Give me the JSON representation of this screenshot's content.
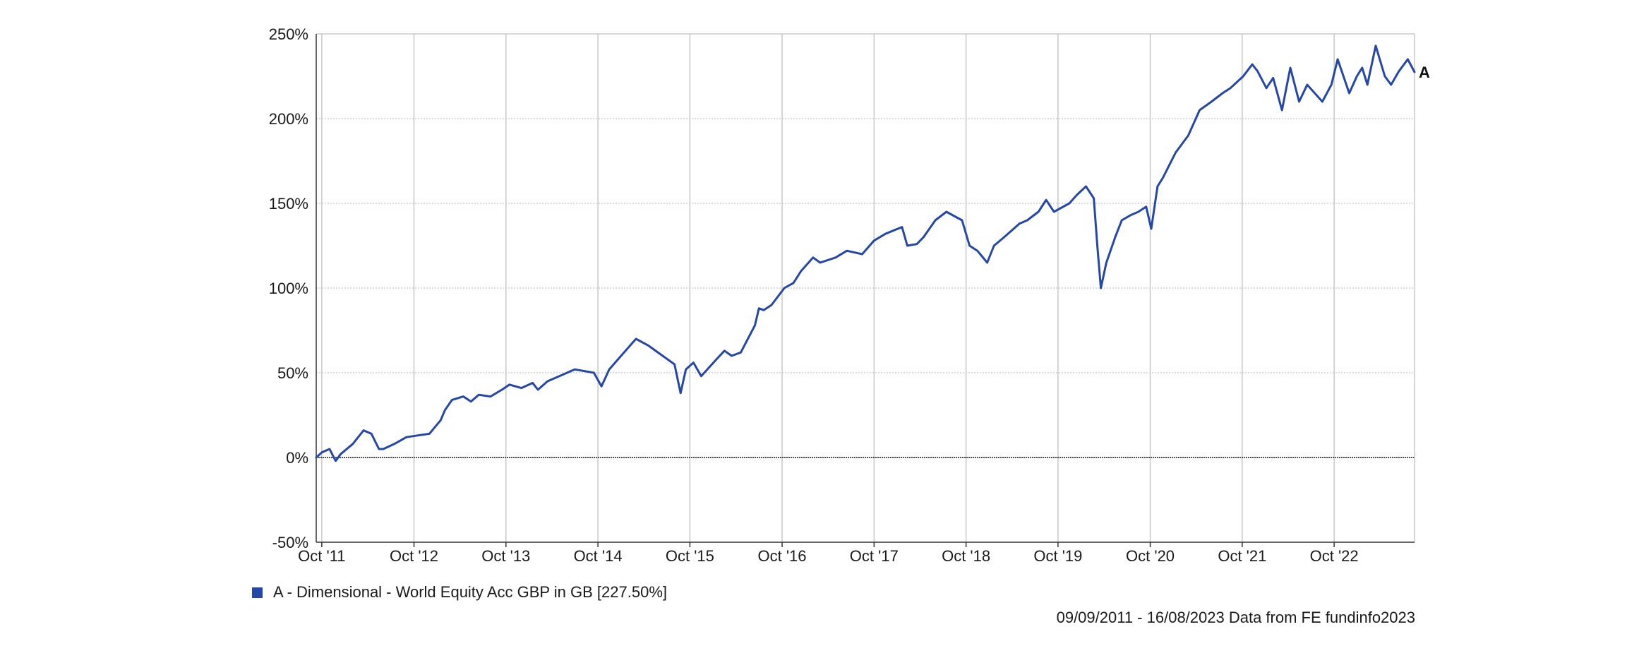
{
  "chart_data": {
    "type": "line",
    "title": "",
    "xlabel": "",
    "ylabel": "",
    "ylim": [
      -50,
      250
    ],
    "yticks": [
      -50,
      0,
      50,
      100,
      150,
      200,
      250
    ],
    "ytick_labels": [
      "-50%",
      "0%",
      "50%",
      "100%",
      "150%",
      "200%",
      "250%"
    ],
    "xlim": [
      "2011-09-09",
      "2023-08-16"
    ],
    "xticks": [
      "2011-10-01",
      "2012-10-01",
      "2013-10-01",
      "2014-10-01",
      "2015-10-01",
      "2016-10-01",
      "2017-10-01",
      "2018-10-01",
      "2019-10-01",
      "2020-10-01",
      "2021-10-01",
      "2022-10-01"
    ],
    "xtick_labels": [
      "Oct '11",
      "Oct '12",
      "Oct '13",
      "Oct '14",
      "Oct '15",
      "Oct '16",
      "Oct '17",
      "Oct '18",
      "Oct '19",
      "Oct '20",
      "Oct '21",
      "Oct '22"
    ],
    "grid": true,
    "zero_line": true,
    "series": [
      {
        "name": "A - Dimensional - World Equity Acc GBP in GB [227.50%]",
        "end_label": "A",
        "color": "#2447a8",
        "x": [
          "2011-09-09",
          "2011-10-01",
          "2011-11-01",
          "2011-11-25",
          "2011-12-15",
          "2012-02-01",
          "2012-03-15",
          "2012-04-15",
          "2012-05-15",
          "2012-06-01",
          "2012-07-15",
          "2012-09-01",
          "2012-10-15",
          "2012-12-01",
          "2013-01-15",
          "2013-02-01",
          "2013-03-01",
          "2013-04-15",
          "2013-05-15",
          "2013-06-15",
          "2013-08-01",
          "2013-09-15",
          "2013-10-15",
          "2013-12-01",
          "2014-01-15",
          "2014-02-05",
          "2014-03-15",
          "2014-05-01",
          "2014-07-01",
          "2014-09-15",
          "2014-10-15",
          "2014-11-15",
          "2015-01-01",
          "2015-03-01",
          "2015-04-20",
          "2015-06-15",
          "2015-08-01",
          "2015-08-25",
          "2015-09-15",
          "2015-10-15",
          "2015-11-15",
          "2016-01-15",
          "2016-02-15",
          "2016-03-15",
          "2016-04-20",
          "2016-06-15",
          "2016-07-01",
          "2016-07-20",
          "2016-08-20",
          "2016-10-10",
          "2016-11-15",
          "2016-12-15",
          "2017-02-01",
          "2017-03-01",
          "2017-05-01",
          "2017-06-15",
          "2017-08-15",
          "2017-10-01",
          "2017-11-15",
          "2018-01-20",
          "2018-02-10",
          "2018-03-20",
          "2018-04-15",
          "2018-06-01",
          "2018-07-15",
          "2018-09-15",
          "2018-10-15",
          "2018-11-15",
          "2018-12-24",
          "2019-01-20",
          "2019-03-01",
          "2019-05-01",
          "2019-06-01",
          "2019-07-15",
          "2019-08-15",
          "2019-09-15",
          "2019-11-15",
          "2019-12-15",
          "2020-01-20",
          "2020-02-20",
          "2020-03-05",
          "2020-03-19",
          "2020-04-10",
          "2020-05-15",
          "2020-06-10",
          "2020-07-15",
          "2020-08-15",
          "2020-09-15",
          "2020-10-05",
          "2020-10-30",
          "2020-11-20",
          "2021-01-10",
          "2021-03-01",
          "2021-04-15",
          "2021-06-01",
          "2021-07-15",
          "2021-08-15",
          "2021-10-05",
          "2021-11-10",
          "2021-12-01",
          "2022-01-05",
          "2022-02-01",
          "2022-03-08",
          "2022-04-10",
          "2022-05-15",
          "2022-06-16",
          "2022-08-15",
          "2022-09-20",
          "2022-10-15",
          "2022-11-30",
          "2022-12-30",
          "2023-01-20",
          "2023-02-10",
          "2023-03-15",
          "2023-04-20",
          "2023-05-15",
          "2023-06-15",
          "2023-07-20",
          "2023-08-16"
        ],
        "y": [
          0,
          3,
          5,
          -2,
          2,
          8,
          16,
          14,
          5,
          5,
          8,
          12,
          13,
          14,
          22,
          28,
          34,
          36,
          33,
          37,
          36,
          40,
          43,
          41,
          44,
          40,
          45,
          48,
          52,
          50,
          42,
          52,
          60,
          70,
          66,
          60,
          55,
          38,
          52,
          56,
          48,
          58,
          63,
          60,
          62,
          78,
          88,
          87,
          90,
          100,
          103,
          110,
          118,
          115,
          118,
          122,
          120,
          128,
          132,
          136,
          125,
          126,
          130,
          140,
          145,
          140,
          125,
          122,
          115,
          125,
          130,
          138,
          140,
          145,
          152,
          145,
          150,
          155,
          160,
          153,
          125,
          100,
          115,
          130,
          140,
          143,
          145,
          148,
          135,
          160,
          165,
          180,
          190,
          205,
          210,
          215,
          218,
          225,
          232,
          228,
          218,
          224,
          205,
          230,
          210,
          220,
          210,
          220,
          235,
          215,
          225,
          230,
          220,
          243,
          225,
          220,
          228,
          235,
          227.5
        ]
      }
    ]
  },
  "legend": {
    "label": "A - Dimensional - World Equity Acc GBP in GB [227.50%]",
    "color": "#2447a8"
  },
  "footer": {
    "text": "09/09/2011 - 16/08/2023 Data from FE fundinfo2023"
  }
}
